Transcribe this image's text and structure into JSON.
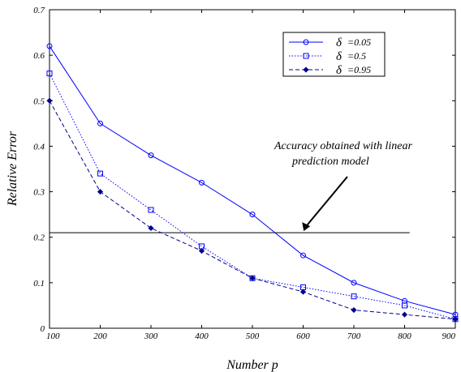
{
  "chart_data": {
    "type": "line",
    "xlabel": "Number p",
    "ylabel": "Relative Error",
    "xlim": [
      100,
      900
    ],
    "ylim": [
      0,
      0.7
    ],
    "x": [
      100,
      200,
      300,
      400,
      500,
      600,
      700,
      800,
      900
    ],
    "x_ticks": [
      "100",
      "200",
      "300",
      "400",
      "500",
      "600",
      "700",
      "800",
      "900"
    ],
    "y_ticks": [
      "0",
      "0.1",
      "0.2",
      "0.3",
      "0.4",
      "0.5",
      "0.6",
      "0.7"
    ],
    "y_tick_values": [
      0,
      0.1,
      0.2,
      0.3,
      0.4,
      0.5,
      0.6,
      0.7
    ],
    "grid": false,
    "legend_position": "top-right",
    "series": [
      {
        "name_symbol": "δ",
        "name_value": "=0.05",
        "marker": "circle",
        "style": "solid",
        "color": "#0000ff",
        "values": [
          0.62,
          0.45,
          0.38,
          0.32,
          0.25,
          0.16,
          0.1,
          0.06,
          0.03
        ]
      },
      {
        "name_symbol": "δ",
        "name_value": "=0.5",
        "marker": "square",
        "style": "dotted",
        "color": "#0000ff",
        "values": [
          0.56,
          0.34,
          0.26,
          0.18,
          0.11,
          0.09,
          0.07,
          0.05,
          0.02
        ]
      },
      {
        "name_symbol": "δ",
        "name_value": "=0.95",
        "marker": "diamond",
        "style": "dashed",
        "color": "#00008b",
        "values": [
          0.5,
          0.3,
          0.22,
          0.17,
          0.11,
          0.08,
          0.04,
          0.03,
          0.02
        ]
      }
    ],
    "reference_line": {
      "y": 0.21,
      "x_start": 100,
      "x_end": 810,
      "color": "#000000"
    },
    "annotation": {
      "lines": [
        "Accuracy obtained with linear",
        "prediction model"
      ],
      "arrow_to": {
        "x": 630,
        "y": 0.21
      }
    }
  }
}
